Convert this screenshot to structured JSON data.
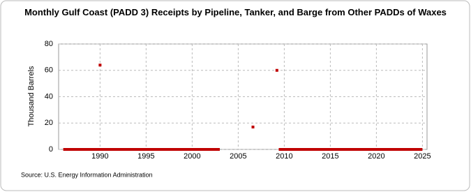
{
  "chart_data": {
    "type": "scatter",
    "title": "Monthly Gulf Coast (PADD 3) Receipts by Pipeline, Tanker, and Barge from Other PADDs of Waxes",
    "y_label": "Thousand Barrels",
    "source": "Source: U.S. Energy Information Administration",
    "xlim": [
      1985.5,
      2025.5
    ],
    "xticks": [
      1990,
      1995,
      2000,
      2005,
      2010,
      2015,
      2020,
      2025
    ],
    "ylim": [
      0,
      80
    ],
    "yticks": [
      0,
      20,
      40,
      60,
      80
    ],
    "grid": true,
    "series": [
      {
        "style": "line",
        "color": "#c00000",
        "x": [
          1986,
          2003,
          2006,
          2009.4,
          2025
        ],
        "values": [
          0,
          0,
          null,
          0,
          0
        ]
      },
      {
        "style": "points",
        "color": "#c00000",
        "x": [
          1990,
          2006.6,
          2009.2
        ],
        "values": [
          64,
          17,
          60
        ]
      }
    ]
  }
}
